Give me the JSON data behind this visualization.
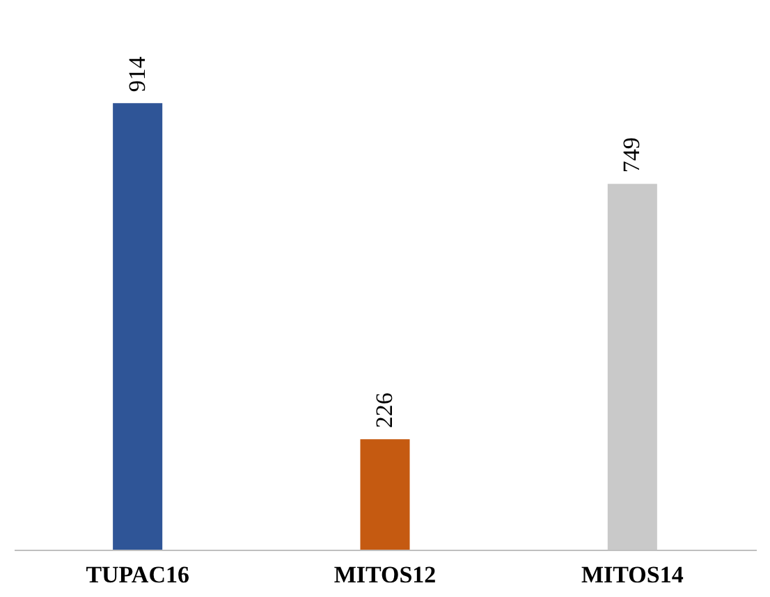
{
  "chart_data": {
    "type": "bar",
    "categories": [
      "TUPAC16",
      "MITOS12",
      "MITOS14"
    ],
    "values": [
      914,
      226,
      749
    ],
    "colors": [
      "#2f5597",
      "#c55a11",
      "#c9c9c9"
    ],
    "data_labels": true,
    "grid": false,
    "tick_labels": "x"
  }
}
